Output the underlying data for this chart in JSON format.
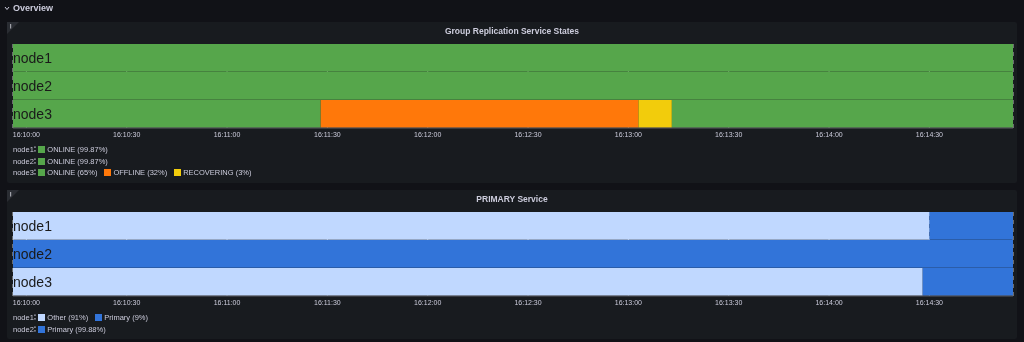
{
  "chart_data": [
    {
      "type": "bar",
      "orientation": "horizontal",
      "title": "Group Replication Service States",
      "annotations": [
        "Overview"
      ],
      "categories": [
        "node1",
        "node2",
        "node3"
      ],
      "series": [
        {
          "name": "ONLINE (99.87%)",
          "color": "#56a64b",
          "base": [
            16.165556,
            null,
            null
          ],
          "values": [
            0.083056,
            null,
            null
          ]
        },
        {
          "name": "ONLINE (99.87%)",
          "color": "#56a64b",
          "base": [
            null,
            16.165556,
            null
          ],
          "values": [
            null,
            0.083056,
            null
          ]
        },
        {
          "name": "ONLINE (65%)",
          "color": "#56a64b",
          "base": [
            null,
            null,
            16.165556
          ],
          "values": [
            null,
            null,
            0.025556
          ]
        },
        {
          "name": "OFFLINE (32%)",
          "color": "#ff780a",
          "base": [
            null,
            null,
            16.191111
          ],
          "values": [
            null,
            null,
            0.026389
          ]
        },
        {
          "name": "RECOVERING (3%)",
          "color": "#f2cc0c",
          "base": [
            null,
            null,
            16.2175
          ],
          "values": [
            null,
            null,
            0.002778
          ]
        },
        {
          "color": "#56a64b",
          "base": [
            null,
            null,
            16.220278
          ],
          "values": [
            null,
            null,
            0.028333
          ]
        }
      ],
      "xlim": [
        16.165556,
        16.248611
      ],
      "xticks": [
        {
          "value": 16.166667,
          "label": "16:10:00"
        },
        {
          "value": 16.175,
          "label": "16:10:30"
        },
        {
          "value": 16.183333,
          "label": "16:11:00"
        },
        {
          "value": 16.191667,
          "label": "16:11:30"
        },
        {
          "value": 16.2,
          "label": "16:12:00"
        },
        {
          "value": 16.208333,
          "label": "16:12:30"
        },
        {
          "value": 16.216667,
          "label": "16:13:00"
        },
        {
          "value": 16.225,
          "label": "16:13:30"
        },
        {
          "value": 16.233333,
          "label": "16:14:00"
        },
        {
          "value": 16.241667,
          "label": "16:14:30"
        }
      ],
      "grid": "x",
      "legend": "bottom left"
    },
    {
      "type": "bar",
      "orientation": "horizontal",
      "title": "PRIMARY Service",
      "categories": [
        "node1",
        "node2",
        "node3"
      ],
      "series": [
        {
          "name": "Other (91%)",
          "color": "#c0d8ff",
          "base": [
            16.165556,
            null,
            null
          ],
          "values": [
            0.076111,
            null,
            null
          ]
        },
        {
          "name": "Primary (9%)",
          "color": "#3274d9",
          "base": [
            16.241667,
            null,
            null
          ],
          "values": [
            0.006944,
            null,
            null
          ]
        },
        {
          "name": "Primary (99.88%)",
          "color": "#3274d9",
          "base": [
            null,
            16.165556,
            null
          ],
          "values": [
            null,
            0.083056,
            null
          ]
        },
        {
          "color": "#c0d8ff",
          "base": [
            null,
            null,
            16.165556
          ],
          "values": [
            null,
            null,
            0.075556
          ]
        },
        {
          "color": "#3274d9",
          "base": [
            null,
            null,
            16.241111
          ],
          "values": [
            null,
            null,
            0.0075
          ]
        }
      ],
      "xlim": [
        16.165556,
        16.248611
      ],
      "xticks": [
        {
          "value": 16.166667,
          "label": "16:10:00"
        },
        {
          "value": 16.175,
          "label": "16:10:30"
        },
        {
          "value": 16.183333,
          "label": "16:11:00"
        },
        {
          "value": 16.191667,
          "label": "16:11:30"
        },
        {
          "value": 16.2,
          "label": "16:12:00"
        },
        {
          "value": 16.208333,
          "label": "16:12:30"
        },
        {
          "value": 16.216667,
          "label": "16:13:00"
        },
        {
          "value": 16.225,
          "label": "16:13:30"
        },
        {
          "value": 16.233333,
          "label": "16:14:00"
        },
        {
          "value": 16.241667,
          "label": "16:14:30"
        }
      ],
      "grid": "x",
      "legend": "bottom left"
    }
  ]
}
